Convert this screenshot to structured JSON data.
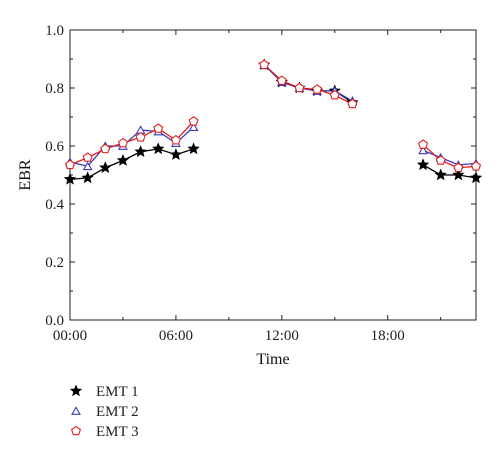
{
  "chart_data": {
    "type": "line",
    "xlabel": "Time",
    "ylabel": "EBR",
    "xlim": [
      0,
      23
    ],
    "ylim": [
      0,
      1.0
    ],
    "x_ticks": [
      0,
      6,
      12,
      18
    ],
    "x_tick_labels": [
      "00:00",
      "06:00",
      "12:00",
      "18:00"
    ],
    "y_ticks": [
      0,
      0.2,
      0.4,
      0.6,
      0.8,
      1.0
    ],
    "y_tick_labels": [
      "0.0",
      "0.2",
      "0.4",
      "0.6",
      "0.8",
      "1.0"
    ],
    "grid": false,
    "legend_position": "bottom-left",
    "series": [
      {
        "name": "EMT 1",
        "marker": "star",
        "color": "#000000",
        "segments": [
          [
            [
              0,
              0.485
            ],
            [
              1,
              0.49
            ],
            [
              2,
              0.525
            ],
            [
              3,
              0.55
            ],
            [
              4,
              0.58
            ],
            [
              5,
              0.59
            ],
            [
              6,
              0.57
            ],
            [
              7,
              0.59
            ]
          ],
          [
            [
              11,
              0.88
            ],
            [
              12,
              0.82
            ],
            [
              13,
              0.8
            ],
            [
              14,
              0.79
            ],
            [
              15,
              0.79
            ],
            [
              16,
              0.75
            ]
          ],
          [
            [
              20,
              0.535
            ],
            [
              21,
              0.5
            ],
            [
              22,
              0.5
            ],
            [
              23,
              0.49
            ]
          ]
        ]
      },
      {
        "name": "EMT 2",
        "marker": "triangle",
        "color": "#3b3bb8",
        "segments": [
          [
            [
              0,
              0.545
            ],
            [
              1,
              0.53
            ],
            [
              2,
              0.6
            ],
            [
              3,
              0.6
            ],
            [
              4,
              0.655
            ],
            [
              5,
              0.65
            ],
            [
              6,
              0.61
            ],
            [
              7,
              0.665
            ]
          ],
          [
            [
              11,
              0.88
            ],
            [
              12,
              0.82
            ],
            [
              13,
              0.8
            ],
            [
              14,
              0.79
            ],
            [
              15,
              0.79
            ],
            [
              16,
              0.755
            ]
          ],
          [
            [
              20,
              0.585
            ],
            [
              21,
              0.56
            ],
            [
              22,
              0.535
            ],
            [
              23,
              0.54
            ]
          ]
        ]
      },
      {
        "name": "EMT 3",
        "marker": "pentagon",
        "color": "#e02020",
        "segments": [
          [
            [
              0,
              0.535
            ],
            [
              1,
              0.56
            ],
            [
              2,
              0.59
            ],
            [
              3,
              0.61
            ],
            [
              4,
              0.63
            ],
            [
              5,
              0.66
            ],
            [
              6,
              0.62
            ],
            [
              7,
              0.685
            ]
          ],
          [
            [
              11,
              0.88
            ],
            [
              12,
              0.825
            ],
            [
              13,
              0.8
            ],
            [
              14,
              0.795
            ],
            [
              15,
              0.775
            ],
            [
              16,
              0.745
            ]
          ],
          [
            [
              20,
              0.605
            ],
            [
              21,
              0.55
            ],
            [
              22,
              0.525
            ],
            [
              23,
              0.53
            ]
          ]
        ]
      }
    ]
  }
}
